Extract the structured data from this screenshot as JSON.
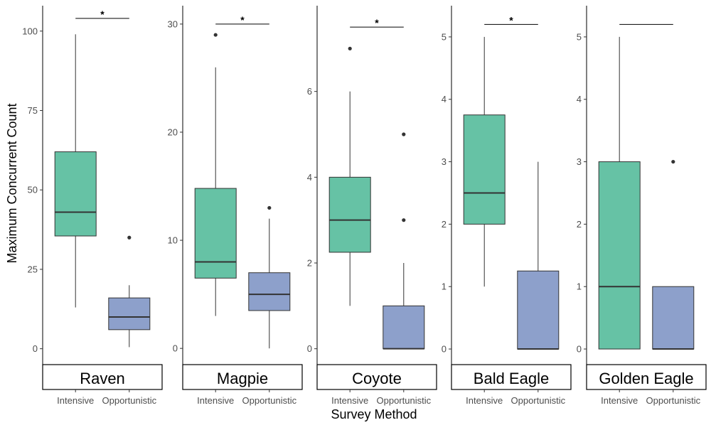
{
  "chart_data": {
    "type": "boxplot",
    "xlabel": "Survey Method",
    "ylabel": "Maximum Concurrent Count",
    "categories": [
      "Intensive",
      "Opportunistic"
    ],
    "colors": {
      "Intensive": "#66c2a5",
      "Opportunistic": "#8da0cb"
    },
    "panels": [
      {
        "name": "Raven",
        "ylim": [
          -5,
          108
        ],
        "yticks": [
          0,
          25,
          50,
          75,
          100
        ],
        "significance": "*",
        "bracket_y": 104,
        "boxes": [
          {
            "group": "Intensive",
            "whisker_low": 13,
            "q1": 35.5,
            "median": 43,
            "q3": 62,
            "whisker_high": 99,
            "outliers": []
          },
          {
            "group": "Opportunistic",
            "whisker_low": 0.5,
            "q1": 6,
            "median": 10,
            "q3": 16,
            "whisker_high": 20,
            "outliers": [
              35
            ]
          }
        ]
      },
      {
        "name": "Magpie",
        "ylim": [
          -1.5,
          31.7
        ],
        "yticks": [
          0,
          10,
          20,
          30
        ],
        "significance": "*",
        "bracket_y": 30,
        "boxes": [
          {
            "group": "Intensive",
            "whisker_low": 3,
            "q1": 6.5,
            "median": 8,
            "q3": 14.8,
            "whisker_high": 26,
            "outliers": [
              29
            ]
          },
          {
            "group": "Opportunistic",
            "whisker_low": 0,
            "q1": 3.5,
            "median": 5,
            "q3": 7,
            "whisker_high": 12,
            "outliers": [
              13
            ]
          }
        ]
      },
      {
        "name": "Coyote",
        "ylim": [
          -0.37,
          8.0
        ],
        "yticks": [
          0,
          2,
          4,
          6
        ],
        "significance": "*",
        "bracket_y": 7.5,
        "boxes": [
          {
            "group": "Intensive",
            "whisker_low": 1,
            "q1": 2.25,
            "median": 3,
            "q3": 4,
            "whisker_high": 6,
            "outliers": [
              7
            ]
          },
          {
            "group": "Opportunistic",
            "whisker_low": 0,
            "q1": 0,
            "median": 0,
            "q3": 1,
            "whisker_high": 2,
            "outliers": [
              3,
              5
            ]
          }
        ]
      },
      {
        "name": "Bald Eagle",
        "ylim": [
          -0.25,
          5.5
        ],
        "yticks": [
          0,
          1,
          2,
          3,
          4,
          5
        ],
        "significance": "*",
        "bracket_y": 5.2,
        "boxes": [
          {
            "group": "Intensive",
            "whisker_low": 1,
            "q1": 2,
            "median": 2.5,
            "q3": 3.75,
            "whisker_high": 5,
            "outliers": []
          },
          {
            "group": "Opportunistic",
            "whisker_low": 0,
            "q1": 0,
            "median": 0,
            "q3": 1.25,
            "whisker_high": 3,
            "outliers": []
          }
        ]
      },
      {
        "name": "Golden Eagle",
        "ylim": [
          -0.25,
          5.5
        ],
        "yticks": [
          0,
          1,
          2,
          3,
          4,
          5
        ],
        "significance": "",
        "bracket_y": 5.2,
        "boxes": [
          {
            "group": "Intensive",
            "whisker_low": 0,
            "q1": 0,
            "median": 1,
            "q3": 3,
            "whisker_high": 5,
            "outliers": []
          },
          {
            "group": "Opportunistic",
            "whisker_low": 0,
            "q1": 0,
            "median": 0,
            "q3": 1,
            "whisker_high": 1,
            "outliers": [
              3
            ]
          }
        ]
      }
    ]
  }
}
